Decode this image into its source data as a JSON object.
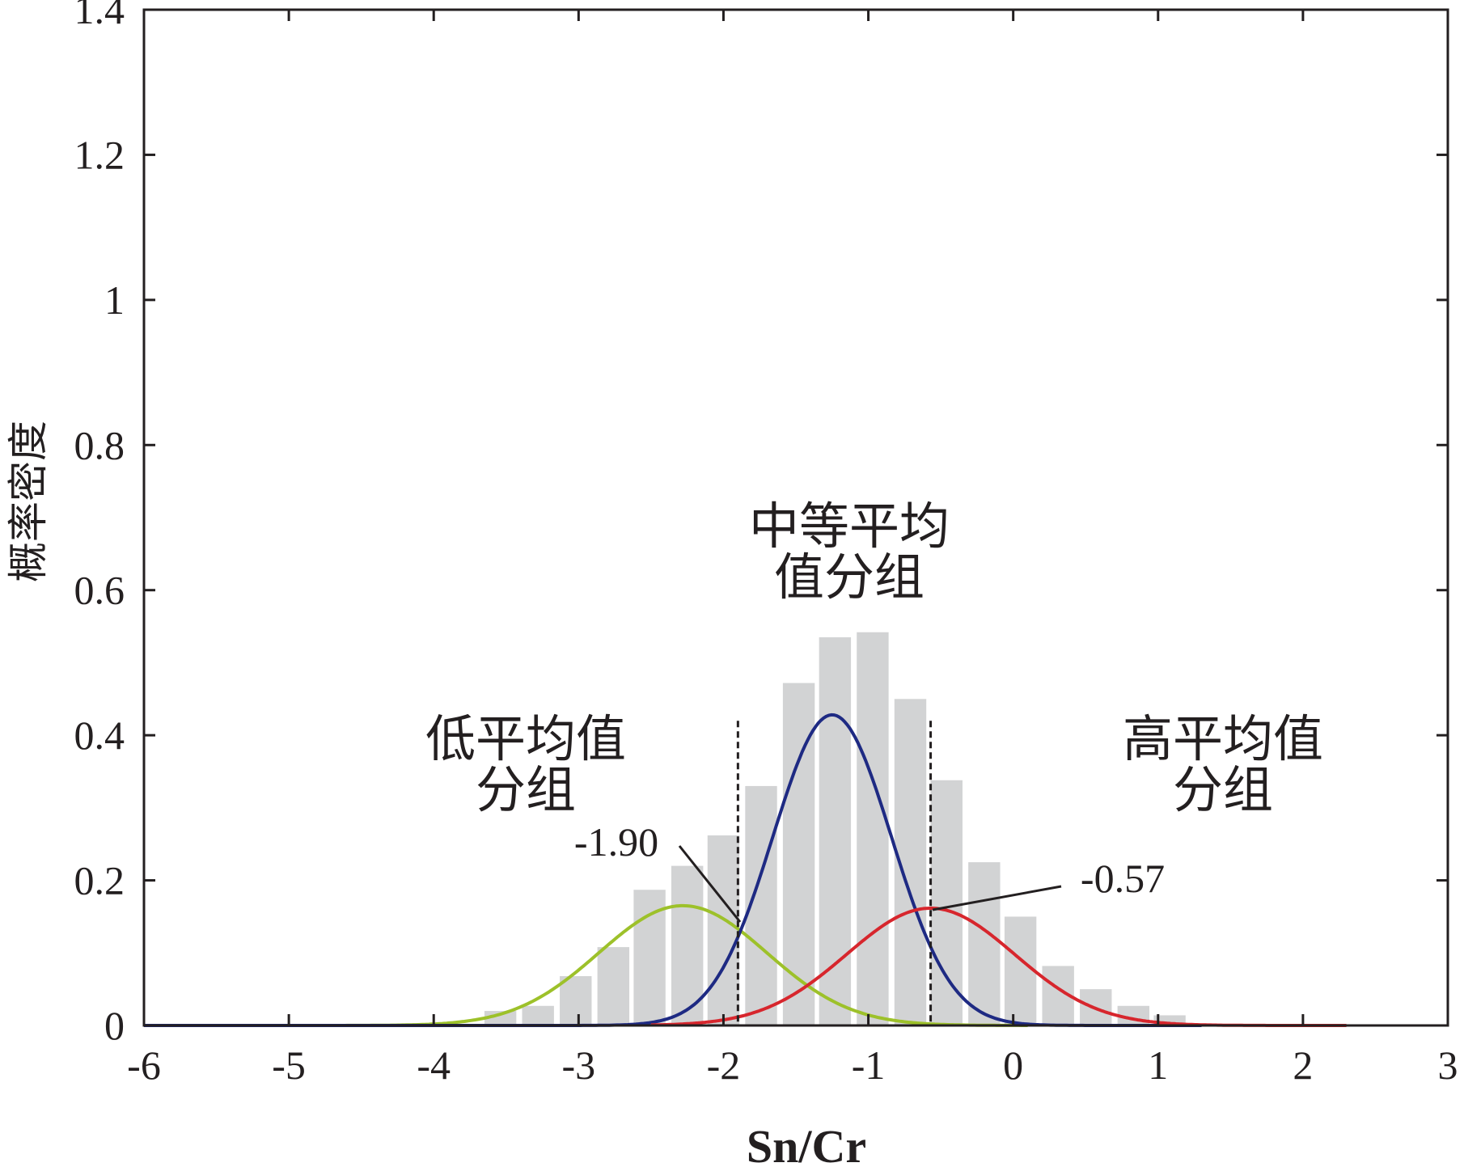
{
  "chart_data": {
    "type": "bar",
    "title": "",
    "xlabel": "Sn/Cr",
    "ylabel": "概率密度",
    "xlim": [
      -6,
      3
    ],
    "ylim": [
      0,
      1.4
    ],
    "xticks": [
      "-6",
      "-5",
      "-4",
      "-3",
      "-2",
      "-1",
      "0",
      "1",
      "2",
      "3"
    ],
    "yticks": [
      "0",
      "0.2",
      "0.4",
      "0.6",
      "0.8",
      "1",
      "1.2",
      "1.4"
    ],
    "grid": false,
    "histogram": {
      "color": "#d2d3d4",
      "x": [
        -3.54,
        -3.28,
        -3.02,
        -2.76,
        -2.51,
        -2.25,
        -2.0,
        -1.74,
        -1.48,
        -1.23,
        -0.97,
        -0.71,
        -0.46,
        -0.2,
        0.05,
        0.31,
        0.57,
        0.83,
        1.08
      ],
      "values": [
        0.02,
        0.027,
        0.068,
        0.108,
        0.187,
        0.22,
        0.262,
        0.33,
        0.472,
        0.535,
        0.542,
        0.45,
        0.338,
        0.225,
        0.15,
        0.082,
        0.05,
        0.027,
        0.014
      ]
    },
    "series": [
      {
        "color": "#9dc12a",
        "mean": -2.28,
        "sd": 0.58,
        "weight": 0.24,
        "x_range": [
          -6,
          0.1
        ]
      },
      {
        "color": "#1e2a83",
        "mean": -1.25,
        "sd": 0.41,
        "weight": 0.44,
        "x_range": [
          -6,
          1.3
        ]
      },
      {
        "color": "#d7262d",
        "mean": -0.57,
        "sd": 0.58,
        "weight": 0.235,
        "x_range": [
          -2.5,
          2.3
        ]
      }
    ],
    "thresholds": [
      {
        "x": -1.9,
        "label": "-1.90",
        "y_top": 0.42
      },
      {
        "x": -0.57,
        "label": "-0.57",
        "y_top": 0.42
      }
    ],
    "annotations": {
      "low_group": [
        "低平均值",
        "分组"
      ],
      "mid_group": [
        "中等平均",
        "值分组"
      ],
      "high_group": [
        "高平均值",
        "分组"
      ]
    }
  }
}
